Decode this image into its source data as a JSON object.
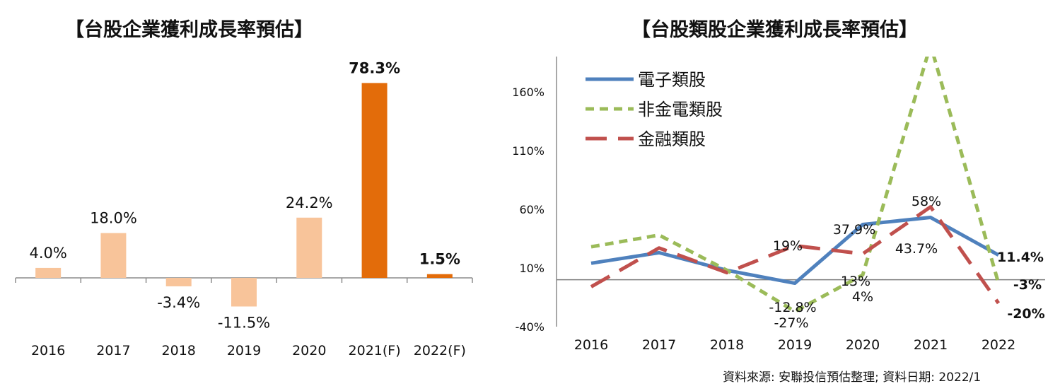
{
  "chart_data": [
    {
      "type": "bar",
      "title": "【台股企業獲利成長率預估】",
      "categories": [
        "2016",
        "2017",
        "2018",
        "2019",
        "2020",
        "2021(F)",
        "2022(F)"
      ],
      "values": [
        4.0,
        18.0,
        -3.4,
        -11.5,
        24.2,
        78.3,
        1.5
      ],
      "value_labels": [
        "4.0%",
        "18.0%",
        "-3.4%",
        "-11.5%",
        "24.2%",
        "78.3%",
        "1.5%"
      ],
      "colors": [
        "#f8c49a",
        "#f8c49a",
        "#f8c49a",
        "#f8c49a",
        "#f8c49a",
        "#e36c0a",
        "#e36c0a"
      ],
      "grid": false
    },
    {
      "type": "line",
      "title": "【台股類股企業獲利成長率預估】",
      "categories": [
        "2016",
        "2017",
        "2018",
        "2019",
        "2020",
        "2021",
        "2022"
      ],
      "y_ticks": [
        "-40%",
        "10%",
        "60%",
        "110%",
        "160%"
      ],
      "ylim": [
        -40,
        190
      ],
      "legend_position": "top-left",
      "grid": false,
      "series": [
        {
          "name": "電子類股",
          "color": "#4f81bd",
          "style": "solid",
          "values": [
            14,
            23,
            8,
            -3,
            47,
            53,
            21
          ]
        },
        {
          "name": "非金電類股",
          "color": "#9bbb59",
          "style": "dash",
          "values": [
            28,
            38,
            8,
            -27,
            4,
            200,
            -3
          ]
        },
        {
          "name": "金融類股",
          "color": "#c0504d",
          "style": "longdash",
          "values": [
            -6,
            27,
            6,
            29,
            22,
            62,
            -20
          ]
        }
      ],
      "annotations": [
        {
          "text": "19%",
          "bold": false
        },
        {
          "text": "37.9%",
          "bold": false
        },
        {
          "text": "58%",
          "bold": false
        },
        {
          "text": "43.7%",
          "bold": false
        },
        {
          "text": "13%",
          "bold": false
        },
        {
          "text": "4%",
          "bold": false
        },
        {
          "text": "-12.8%",
          "bold": false
        },
        {
          "text": "-27%",
          "bold": false
        },
        {
          "text": "11.4%",
          "bold": true
        },
        {
          "text": "-3%",
          "bold": true
        },
        {
          "text": "-20%",
          "bold": true
        }
      ]
    }
  ],
  "source_note": "資料來源: 安聯投信預估整理; 資料日期:  2022/1"
}
